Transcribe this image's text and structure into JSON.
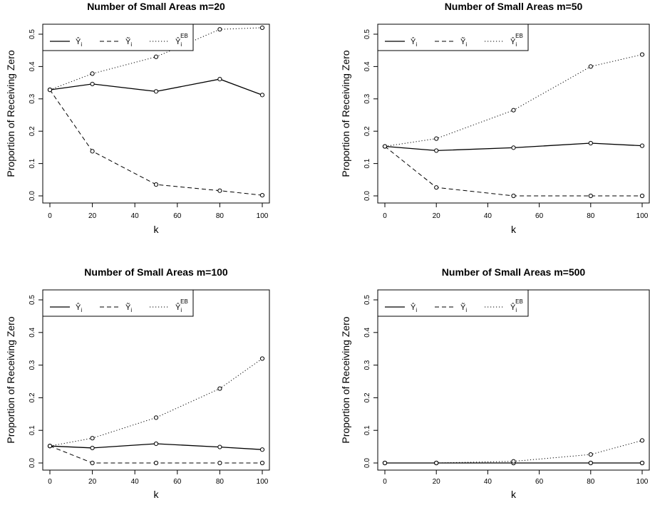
{
  "chart_data": [
    {
      "type": "line",
      "title": "Number of Small Areas m=20",
      "xlabel": "k",
      "ylabel": "Proportion of Receiving Zero",
      "x": [
        0,
        20,
        50,
        80,
        100
      ],
      "xticks": [
        "0",
        "20",
        "40",
        "60",
        "80",
        "100"
      ],
      "yticks": [
        "0.0",
        "0.1",
        "0.2",
        "0.3",
        "0.4",
        "0.5"
      ],
      "xlim": [
        0,
        100
      ],
      "ylim": [
        0,
        0.5
      ],
      "grid": false,
      "legend_position": "top-left",
      "series": [
        {
          "name": "Ŷ_i",
          "style": "solid",
          "values": [
            0.328,
            0.346,
            0.323,
            0.361,
            0.312
          ]
        },
        {
          "name": "Ỹ_i",
          "style": "dashed",
          "values": [
            0.328,
            0.138,
            0.035,
            0.016,
            0.002
          ]
        },
        {
          "name": "Ŷ_i^EB",
          "style": "dotted",
          "values": [
            0.328,
            0.378,
            0.43,
            0.515,
            0.52
          ]
        }
      ]
    },
    {
      "type": "line",
      "title": "Number of Small Areas m=50",
      "xlabel": "k",
      "ylabel": "Proportion of Receiving Zero",
      "x": [
        0,
        20,
        50,
        80,
        100
      ],
      "xticks": [
        "0",
        "20",
        "40",
        "60",
        "80",
        "100"
      ],
      "yticks": [
        "0.0",
        "0.1",
        "0.2",
        "0.3",
        "0.4",
        "0.5"
      ],
      "xlim": [
        0,
        100
      ],
      "ylim": [
        0,
        0.5
      ],
      "grid": false,
      "legend_position": "top-left",
      "series": [
        {
          "name": "Ŷ_i",
          "style": "solid",
          "values": [
            0.153,
            0.14,
            0.149,
            0.163,
            0.155
          ]
        },
        {
          "name": "Ỹ_i",
          "style": "dashed",
          "values": [
            0.153,
            0.026,
            0.0,
            0.0,
            0.0
          ]
        },
        {
          "name": "Ŷ_i^EB",
          "style": "dotted",
          "values": [
            0.153,
            0.177,
            0.265,
            0.4,
            0.437
          ]
        }
      ]
    },
    {
      "type": "line",
      "title": "Number of Small Areas m=100",
      "xlabel": "k",
      "ylabel": "Proportion of Receiving Zero",
      "x": [
        0,
        20,
        50,
        80,
        100
      ],
      "xticks": [
        "0",
        "20",
        "40",
        "60",
        "80",
        "100"
      ],
      "yticks": [
        "0.0",
        "0.1",
        "0.2",
        "0.3",
        "0.4",
        "0.5"
      ],
      "xlim": [
        0,
        100
      ],
      "ylim": [
        0,
        0.5
      ],
      "grid": false,
      "legend_position": "top-left",
      "series": [
        {
          "name": "Ŷ_i",
          "style": "solid",
          "values": [
            0.052,
            0.046,
            0.059,
            0.049,
            0.041
          ]
        },
        {
          "name": "Ỹ_i",
          "style": "dashed",
          "values": [
            0.052,
            0.0,
            0.0,
            0.0,
            0.0
          ]
        },
        {
          "name": "Ŷ_i^EB",
          "style": "dotted",
          "values": [
            0.052,
            0.076,
            0.139,
            0.228,
            0.32
          ]
        }
      ]
    },
    {
      "type": "line",
      "title": "Number of Small Areas m=500",
      "xlabel": "k",
      "ylabel": "Proportion of Receiving Zero",
      "x": [
        0,
        20,
        50,
        80,
        100
      ],
      "xticks": [
        "0",
        "20",
        "40",
        "60",
        "80",
        "100"
      ],
      "yticks": [
        "0.0",
        "0.1",
        "0.2",
        "0.3",
        "0.4",
        "0.5"
      ],
      "xlim": [
        0,
        100
      ],
      "ylim": [
        0,
        0.5
      ],
      "grid": false,
      "legend_position": "top-left",
      "series": [
        {
          "name": "Ŷ_i",
          "style": "solid",
          "values": [
            0.0,
            0.0,
            0.0,
            0.0,
            0.0
          ]
        },
        {
          "name": "Ỹ_i",
          "style": "dashed",
          "values": [
            0.0,
            0.0,
            0.0,
            0.0,
            0.0
          ]
        },
        {
          "name": "Ŷ_i^EB",
          "style": "dotted",
          "values": [
            0.0,
            0.0,
            0.005,
            0.026,
            0.069
          ]
        }
      ]
    }
  ]
}
